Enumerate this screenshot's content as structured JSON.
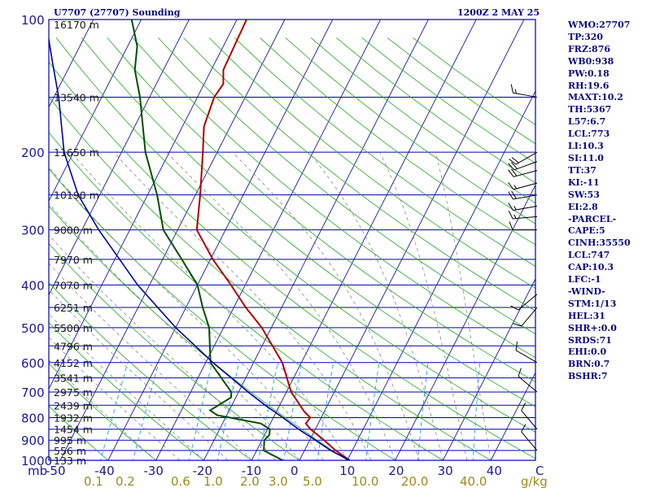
{
  "header": {
    "station": "U7707 (27707) Sounding",
    "timestamp": "1200Z  2 MAY 25"
  },
  "colors": {
    "frame": "#0000b0",
    "isobar": "#0000b0",
    "isotherm": "#1a1a9a",
    "dry_adiabat": "#1eaa1e",
    "moist_adiabat": "#7a7a7a",
    "mixing_ratio": "#1e9ee8",
    "temperature": "#b00000",
    "dewpoint": "#005000",
    "parcel": "#0000a0",
    "axis_text": "#1a1a9a",
    "mixing_text": "#a08a1a"
  },
  "indices": [
    "WMO:27707",
    "TP:320",
    "FRZ:876",
    "WB0:938",
    "PW:0.18",
    "RH:19.6",
    "MAXT:10.2",
    "TH:5367",
    "L57:6.7",
    "LCL:773",
    "LI:10.3",
    "SI:11.0",
    "TT:37",
    "KI:-11",
    "SW:53",
    "EI:2.8",
    "-PARCEL-",
    "CAPE:5",
    "CINH:35550",
    "LCL:747",
    "CAP:10.3",
    "LFC:-1",
    "-WIND-",
    "STM:1/13",
    "HEL:31",
    "SHR+:0.0",
    "SRDS:71",
    "EHI:0.0",
    "BRN:0.7",
    "BSHR:7"
  ],
  "chart_data": {
    "type": "line",
    "diagram": "skew-T log-P",
    "title": "U7707 (27707) Sounding",
    "xlabel": "",
    "ylabel": "mb",
    "pressure_axis": {
      "scale": "log",
      "range": [
        1000,
        100
      ],
      "tick_labels": [
        100,
        200,
        300,
        400,
        500,
        600,
        700,
        800,
        900,
        1000
      ],
      "corner_label": "mb"
    },
    "temperature_axis": {
      "range": [
        -50,
        0
      ],
      "tick_labels": [
        "-50",
        "-40",
        "-30",
        "-20",
        "-10",
        "0",
        "10",
        "20",
        "30",
        "40",
        "C"
      ]
    },
    "mixing_ratio_labels": [
      "0.1",
      "0.2",
      "0.6",
      "1.0",
      "2.0",
      "3.0",
      "5.0",
      "10.0",
      "20.0",
      "40.0",
      "g/kg"
    ],
    "height_labels": [
      {
        "p": 1000,
        "label": "133 m"
      },
      {
        "p": 950,
        "label": "556 m"
      },
      {
        "p": 900,
        "label": "995 m"
      },
      {
        "p": 850,
        "label": "1454 m"
      },
      {
        "p": 800,
        "label": "1932 m"
      },
      {
        "p": 750,
        "label": "2439 m"
      },
      {
        "p": 700,
        "label": "2975 m"
      },
      {
        "p": 650,
        "label": "3541 m"
      },
      {
        "p": 600,
        "label": "4152 m"
      },
      {
        "p": 550,
        "label": "4796 m"
      },
      {
        "p": 500,
        "label": "5500 m"
      },
      {
        "p": 450,
        "label": "6251 m"
      },
      {
        "p": 400,
        "label": "7070 m"
      },
      {
        "p": 350,
        "label": "7970 m"
      },
      {
        "p": 300,
        "label": "9000 m"
      },
      {
        "p": 250,
        "label": "10190 m"
      },
      {
        "p": 200,
        "label": "11650 m"
      },
      {
        "p": 150,
        "label": "13540 m"
      },
      {
        "p": 100,
        "label": "16170 m"
      }
    ],
    "series": [
      {
        "key": "temperature",
        "points": [
          [
            1000,
            10.5
          ],
          [
            950,
            6.5
          ],
          [
            900,
            3.0
          ],
          [
            850,
            -1.0
          ],
          [
            825,
            -2.6
          ],
          [
            800,
            -2.3
          ],
          [
            775,
            -4.2
          ],
          [
            700,
            -9.0
          ],
          [
            600,
            -14.0
          ],
          [
            500,
            -22.0
          ],
          [
            450,
            -27.5
          ],
          [
            400,
            -33.0
          ],
          [
            350,
            -39.5
          ],
          [
            300,
            -46.0
          ],
          [
            250,
            -49.0
          ],
          [
            200,
            -53.0
          ],
          [
            175,
            -55.5
          ],
          [
            150,
            -56.5
          ],
          [
            140,
            -56.0
          ],
          [
            130,
            -57.5
          ],
          [
            100,
            -58.0
          ]
        ]
      },
      {
        "key": "dewpoint",
        "points": [
          [
            1000,
            -3.5
          ],
          [
            950,
            -8.5
          ],
          [
            900,
            -9.5
          ],
          [
            875,
            -9.0
          ],
          [
            850,
            -9.5
          ],
          [
            825,
            -12.0
          ],
          [
            790,
            -22.0
          ],
          [
            770,
            -24.0
          ],
          [
            720,
            -21.0
          ],
          [
            700,
            -21.5
          ],
          [
            600,
            -29.0
          ],
          [
            500,
            -33.0
          ],
          [
            450,
            -36.5
          ],
          [
            400,
            -40.0
          ],
          [
            350,
            -46.0
          ],
          [
            300,
            -53.0
          ],
          [
            250,
            -58.0
          ],
          [
            200,
            -65.0
          ],
          [
            150,
            -72.0
          ],
          [
            130,
            -76.0
          ],
          [
            115,
            -78.0
          ],
          [
            100,
            -82.0
          ]
        ]
      },
      {
        "key": "parcel",
        "points": [
          [
            1000,
            10.5
          ],
          [
            950,
            5.5
          ],
          [
            900,
            1.2
          ],
          [
            850,
            -3.5
          ],
          [
            800,
            -8.0
          ],
          [
            750,
            -13.0
          ],
          [
            700,
            -18.0
          ],
          [
            600,
            -28.5
          ],
          [
            500,
            -40.0
          ],
          [
            400,
            -52.5
          ],
          [
            300,
            -66.5
          ],
          [
            250,
            -74.5
          ],
          [
            200,
            -82.0
          ],
          [
            150,
            -89.0
          ],
          [
            125,
            -94.0
          ],
          [
            100,
            -100.0
          ]
        ]
      }
    ],
    "wind_barbs": [
      {
        "p": 150,
        "dir": 280,
        "spd": 15
      },
      {
        "p": 200,
        "dir": 240,
        "spd": 20
      },
      {
        "p": 210,
        "dir": 250,
        "spd": 20
      },
      {
        "p": 220,
        "dir": 255,
        "spd": 20
      },
      {
        "p": 235,
        "dir": 255,
        "spd": 15
      },
      {
        "p": 250,
        "dir": 260,
        "spd": 20
      },
      {
        "p": 265,
        "dir": 260,
        "spd": 15
      },
      {
        "p": 280,
        "dir": 265,
        "spd": 15
      },
      {
        "p": 300,
        "dir": 270,
        "spd": 10
      },
      {
        "p": 420,
        "dir": 230,
        "spd": 10
      },
      {
        "p": 450,
        "dir": 220,
        "spd": 10
      },
      {
        "p": 600,
        "dir": 300,
        "spd": 10
      },
      {
        "p": 700,
        "dir": 310,
        "spd": 10
      },
      {
        "p": 850,
        "dir": 320,
        "spd": 10
      },
      {
        "p": 950,
        "dir": 320,
        "spd": 10
      }
    ],
    "grid": true
  }
}
